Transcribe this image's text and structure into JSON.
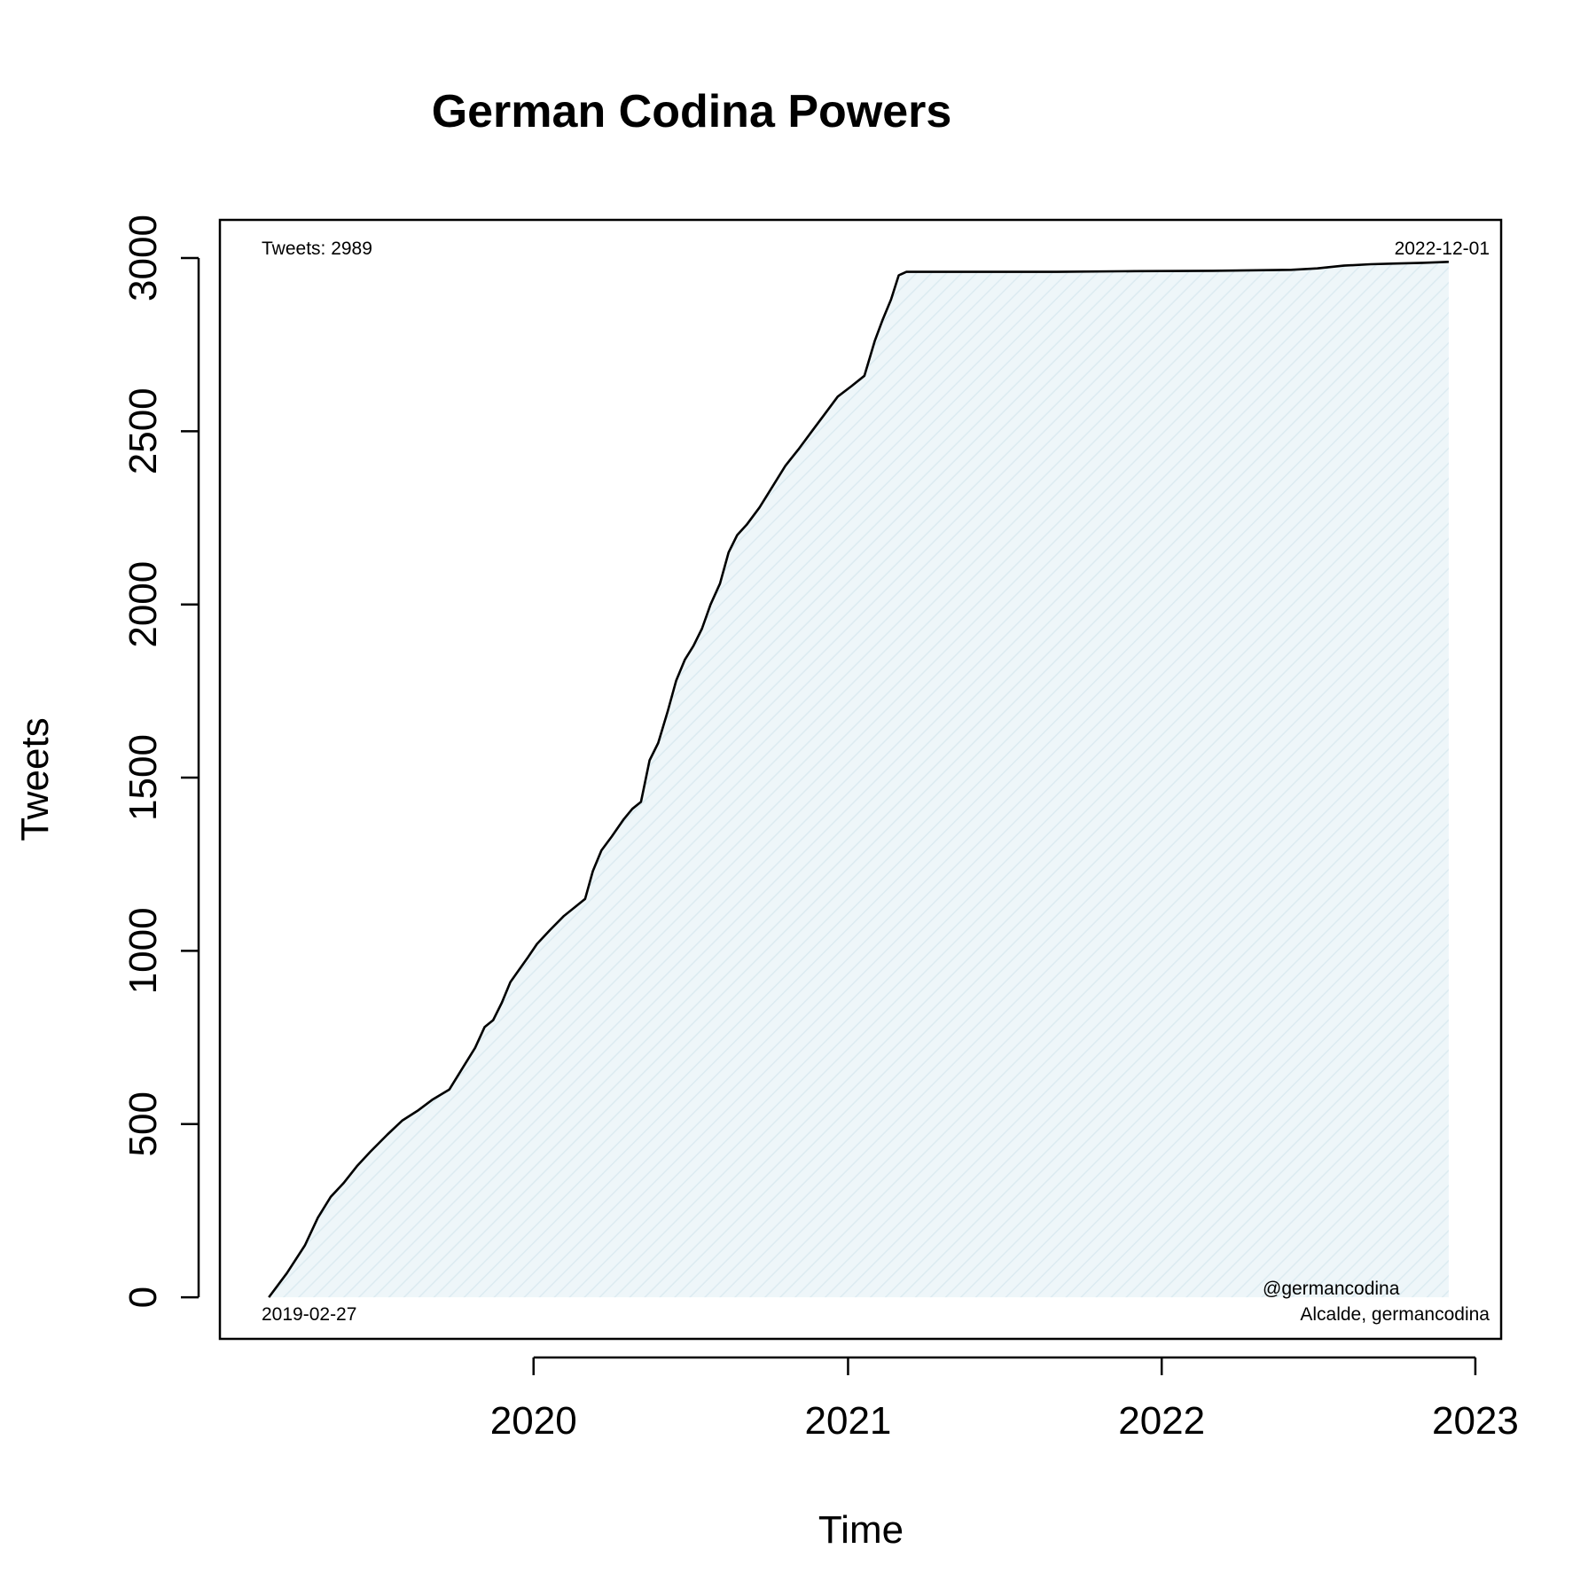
{
  "chart_data": {
    "type": "area",
    "title": "German Codina Powers",
    "xlabel": "Time",
    "ylabel": "Tweets",
    "x_ticks": [
      "2020",
      "2021",
      "2022",
      "2023"
    ],
    "y_ticks": [
      "0",
      "500",
      "1000",
      "1500",
      "2000",
      "2500",
      "3000"
    ],
    "xlim": [
      "2019-01-01",
      "2023-01-31"
    ],
    "ylim": [
      -120,
      3110
    ],
    "grid": false,
    "fill_color": "#e6f2f7",
    "line_color": "#000000",
    "annotations": {
      "tweets_total": "Tweets: 2989",
      "end_date": "2022-12-01",
      "start_date": "2019-02-27",
      "handle": "@germancodina",
      "credit": "Alcalde, germancodina"
    },
    "series": [
      {
        "x": [
          "2019-02-27",
          "2019-03-20",
          "2019-04-10",
          "2019-04-25",
          "2019-05-10",
          "2019-05-25",
          "2019-06-10",
          "2019-06-25",
          "2019-07-15",
          "2019-08-01",
          "2019-08-20",
          "2019-09-05",
          "2019-09-25",
          "2019-10-10",
          "2019-10-25",
          "2019-11-05",
          "2019-11-15",
          "2019-11-25",
          "2019-12-05",
          "2019-12-15",
          "2019-12-25",
          "2020-01-05",
          "2020-01-20",
          "2020-02-05",
          "2020-02-20",
          "2020-03-01",
          "2020-03-10",
          "2020-03-20",
          "2020-04-01",
          "2020-04-15",
          "2020-04-25",
          "2020-05-05",
          "2020-05-15",
          "2020-05-25",
          "2020-06-05",
          "2020-06-15",
          "2020-06-25",
          "2020-07-05",
          "2020-07-15",
          "2020-07-25",
          "2020-08-05",
          "2020-08-15",
          "2020-08-25",
          "2020-09-05",
          "2020-09-20",
          "2020-10-05",
          "2020-10-20",
          "2020-11-05",
          "2020-11-20",
          "2020-12-05",
          "2020-12-20",
          "2021-01-05",
          "2021-01-20",
          "2021-02-01",
          "2021-02-10",
          "2021-02-20",
          "2021-03-01",
          "2021-03-10",
          "2021-06-01",
          "2021-09-01",
          "2021-12-01",
          "2022-03-01",
          "2022-06-01",
          "2022-07-01",
          "2022-08-01",
          "2022-09-01",
          "2022-10-01",
          "2022-11-01",
          "2022-12-01"
        ],
        "y": [
          0,
          70,
          150,
          230,
          290,
          330,
          380,
          420,
          470,
          510,
          540,
          570,
          600,
          660,
          720,
          780,
          800,
          850,
          910,
          945,
          980,
          1020,
          1060,
          1100,
          1130,
          1150,
          1230,
          1290,
          1330,
          1380,
          1410,
          1430,
          1550,
          1600,
          1690,
          1780,
          1840,
          1880,
          1930,
          2000,
          2060,
          2150,
          2200,
          2230,
          2280,
          2340,
          2400,
          2450,
          2500,
          2550,
          2600,
          2630,
          2660,
          2760,
          2820,
          2880,
          2950,
          2960,
          2960,
          2960,
          2962,
          2963,
          2966,
          2970,
          2978,
          2982,
          2984,
          2986,
          2989
        ]
      }
    ]
  }
}
